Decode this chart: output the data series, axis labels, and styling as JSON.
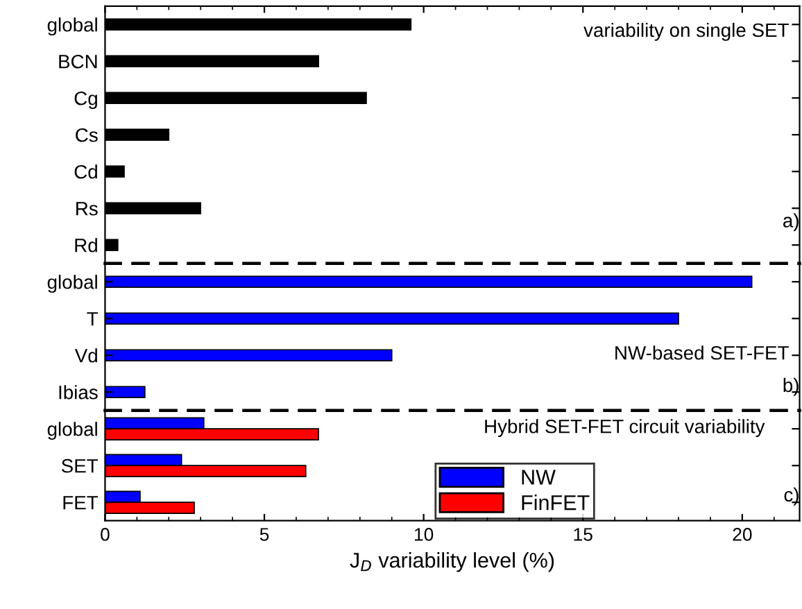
{
  "chart_data": [
    {
      "type": "bar",
      "orientation": "horizontal",
      "categories": [
        "global",
        "BCN",
        "Cg",
        "Cs",
        "Cd",
        "Rs",
        "Rd"
      ],
      "series": [
        {
          "color": "#000000",
          "values": [
            9.6,
            6.7,
            8.2,
            2.0,
            0.6,
            3.0,
            0.4
          ]
        }
      ],
      "xlim": [
        0,
        21.8
      ],
      "xticks": [
        0,
        5,
        10,
        15,
        20
      ],
      "tick_labels": "y",
      "annotations": [
        "variability on single SET",
        "a)"
      ]
    },
    {
      "type": "bar",
      "orientation": "horizontal",
      "categories": [
        "global",
        "T",
        "Vd",
        "Ibias"
      ],
      "series": [
        {
          "color": "#0000ff",
          "values": [
            20.3,
            18.0,
            9.0,
            1.25
          ]
        }
      ],
      "xlim": [
        0,
        21.8
      ],
      "xticks": [
        0,
        5,
        10,
        15,
        20
      ],
      "tick_labels": "y",
      "annotations": [
        "NW-based SET-FET",
        "b)"
      ]
    },
    {
      "type": "bar",
      "orientation": "horizontal",
      "categories": [
        "global",
        "SET",
        "FET"
      ],
      "series": [
        {
          "name": "NW",
          "color": "#0000ff",
          "values": [
            3.1,
            2.4,
            1.1
          ]
        },
        {
          "name": "FinFET",
          "color": "#ff0000",
          "values": [
            6.7,
            6.3,
            2.8
          ]
        }
      ],
      "xlabel": "J$_{D}$ variability level (%)",
      "xlim": [
        0,
        21.8
      ],
      "xticks": [
        0,
        5,
        10,
        15,
        20
      ],
      "annotations": [
        "Hybrid SET-FET circuit variability",
        "c)"
      ],
      "legend": "bottom"
    }
  ]
}
